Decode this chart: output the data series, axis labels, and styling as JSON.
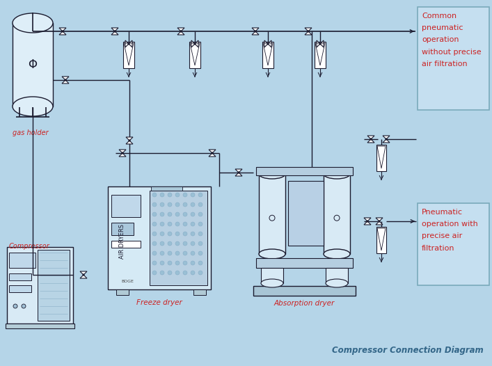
{
  "bg_color": "#b5d5e8",
  "line_color": "#1a1a2e",
  "red_color": "#cc2222",
  "box_fill": "#c8dff0",
  "box_stroke": "#7aaabb",
  "title": "Compressor Connection Diagram",
  "label_compressor": "Compressor",
  "label_gas_holder": "gas holder",
  "label_freeze_dryer": "Freeze dryer",
  "label_absorption_dryer": "Absorption dryer",
  "label_common": "Common\npneumatic\noperation\nwithout precise\nair filtration",
  "label_precise": "Pneumatic\noperation with\nprecise air\nfiltration"
}
